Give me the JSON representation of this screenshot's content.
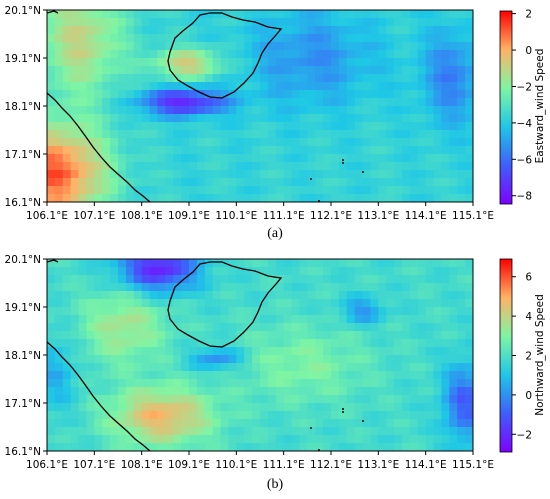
{
  "panels": [
    {
      "caption": "(a)",
      "variable_label": "Eastward_wind Speed",
      "colorbar_ticks": [
        "2",
        "0",
        "−2",
        "−4",
        "−6",
        "−8"
      ],
      "colorbar_values": [
        2,
        0,
        -2,
        -4,
        -6,
        -8
      ],
      "colorbar_range": [
        -8.4,
        2.2
      ],
      "x_ticks": [
        "106.1°E",
        "107.1°E",
        "108.1°E",
        "109.1°E",
        "110.1°E",
        "111.1°E",
        "112.1°E",
        "113.1°E",
        "114.1°E",
        "115.1°E"
      ],
      "y_ticks": [
        "20.1°N",
        "19.1°N",
        "18.1°N",
        "17.1°N",
        "16.1°N"
      ]
    },
    {
      "caption": "(b)",
      "variable_label": "Northward_wind Speed",
      "colorbar_ticks": [
        "6",
        "4",
        "2",
        "0",
        "−2"
      ],
      "colorbar_values": [
        6,
        4,
        2,
        0,
        -2
      ],
      "colorbar_range": [
        -2.9,
        6.9
      ],
      "x_ticks": [
        "106.1°E",
        "107.1°E",
        "108.1°E",
        "109.1°E",
        "110.1°E",
        "111.1°E",
        "112.1°E",
        "113.1°E",
        "114.1°E",
        "115.1°E"
      ],
      "y_ticks": [
        "20.1°N",
        "19.1°N",
        "18.1°N",
        "17.1°N",
        "16.1°N"
      ]
    }
  ],
  "colormap": "rainbow",
  "coastline_color": "#000000",
  "extent": {
    "lon": [
      106.1,
      115.1
    ],
    "lat": [
      16.1,
      20.1
    ]
  }
}
